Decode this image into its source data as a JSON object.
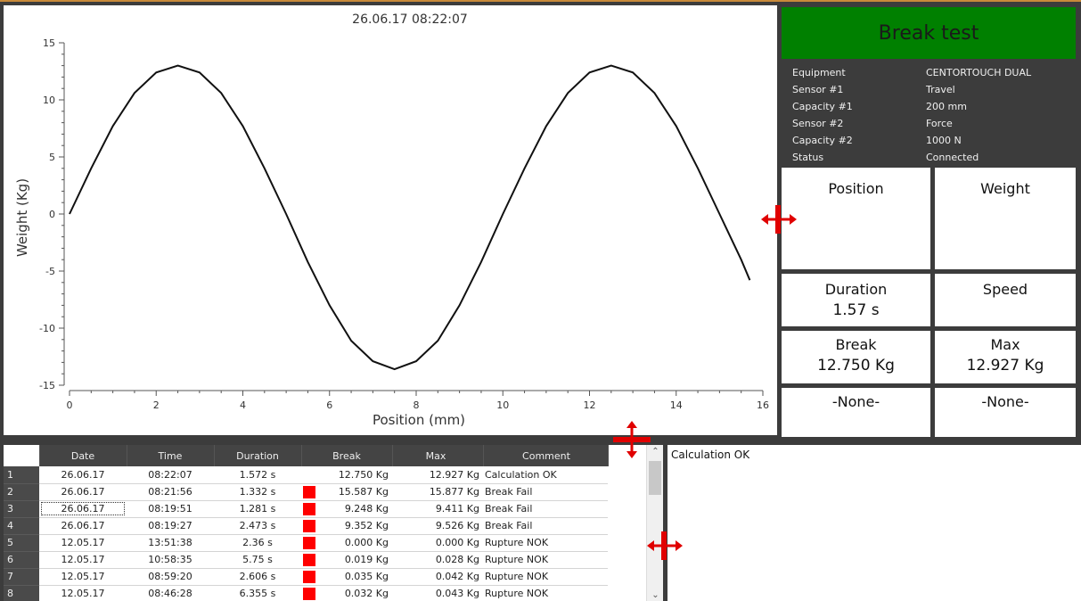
{
  "chart": {
    "timestamp": "26.06.17 08:22:07",
    "xlabel": "Position (mm)",
    "ylabel": "Weight (Kg)"
  },
  "chart_data": {
    "type": "line",
    "title": "26.06.17 08:22:07",
    "xlabel": "Position (mm)",
    "ylabel": "Weight (Kg)",
    "xlim": [
      0,
      16
    ],
    "ylim": [
      -15,
      15
    ],
    "xticks": [
      0,
      2,
      4,
      6,
      8,
      10,
      12,
      14,
      16
    ],
    "yticks": [
      -15,
      -10,
      -5,
      0,
      5,
      10,
      15
    ],
    "series": [
      {
        "x": [
          0,
          0.5,
          1,
          1.5,
          2,
          2.5,
          3,
          3.5,
          4,
          4.5,
          5,
          5.5,
          6,
          6.5,
          7,
          7.5,
          8,
          8.5,
          9,
          9.5,
          10,
          10.5,
          11,
          11.5,
          12,
          12.5,
          13,
          13.5,
          14,
          14.5,
          15,
          15.5,
          15.7
        ],
        "y": [
          0,
          4.0,
          7.7,
          10.6,
          12.4,
          13.0,
          12.4,
          10.6,
          7.7,
          4.0,
          0,
          -4.2,
          -8.0,
          -11.1,
          -12.9,
          -13.6,
          -12.9,
          -11.1,
          -8.0,
          -4.2,
          0,
          4.0,
          7.7,
          10.6,
          12.4,
          13.0,
          12.4,
          10.6,
          7.7,
          4.0,
          0,
          -4.0,
          -5.8
        ]
      }
    ]
  },
  "title": "Break test",
  "info": [
    {
      "label": "Equipment",
      "value": "CENTORTOUCH DUAL"
    },
    {
      "label": "Sensor #1",
      "value": "Travel"
    },
    {
      "label": "Capacity #1",
      "value": "200 mm"
    },
    {
      "label": "Sensor #2",
      "value": "Force"
    },
    {
      "label": "Capacity #2",
      "value": "1000 N"
    },
    {
      "label": "Status",
      "value": "Connected"
    }
  ],
  "stats": {
    "position": {
      "label": "Position",
      "value": ""
    },
    "weight": {
      "label": "Weight",
      "value": ""
    },
    "duration": {
      "label": "Duration",
      "value": "1.57 s"
    },
    "speed": {
      "label": "Speed",
      "value": ""
    },
    "break": {
      "label": "Break",
      "value": "12.750 Kg"
    },
    "max": {
      "label": "Max",
      "value": "12.927 Kg"
    },
    "none1": {
      "label": "-None-",
      "value": ""
    },
    "none2": {
      "label": "-None-",
      "value": ""
    }
  },
  "table": {
    "headers": [
      "Date",
      "Time",
      "Duration",
      "Break",
      "Max",
      "Comment"
    ],
    "rows": [
      {
        "n": "1",
        "date": "26.06.17",
        "time": "08:22:07",
        "duration": "1.572 s",
        "flag": false,
        "break": "12.750 Kg",
        "max": "12.927 Kg",
        "comment": "Calculation OK"
      },
      {
        "n": "2",
        "date": "26.06.17",
        "time": "08:21:56",
        "duration": "1.332 s",
        "flag": true,
        "break": "15.587 Kg",
        "max": "15.877 Kg",
        "comment": "Break Fail"
      },
      {
        "n": "3",
        "date": "26.06.17",
        "time": "08:19:51",
        "duration": "1.281 s",
        "flag": true,
        "break": "9.248 Kg",
        "max": "9.411 Kg",
        "comment": "Break Fail"
      },
      {
        "n": "4",
        "date": "26.06.17",
        "time": "08:19:27",
        "duration": "2.473 s",
        "flag": true,
        "break": "9.352 Kg",
        "max": "9.526 Kg",
        "comment": "Break Fail"
      },
      {
        "n": "5",
        "date": "12.05.17",
        "time": "13:51:38",
        "duration": "2.36 s",
        "flag": true,
        "break": "0.000 Kg",
        "max": "0.000 Kg",
        "comment": "Rupture NOK"
      },
      {
        "n": "6",
        "date": "12.05.17",
        "time": "10:58:35",
        "duration": "5.75 s",
        "flag": true,
        "break": "0.019 Kg",
        "max": "0.028 Kg",
        "comment": "Rupture NOK"
      },
      {
        "n": "7",
        "date": "12.05.17",
        "time": "08:59:20",
        "duration": "2.606 s",
        "flag": true,
        "break": "0.035 Kg",
        "max": "0.042 Kg",
        "comment": "Rupture NOK"
      },
      {
        "n": "8",
        "date": "12.05.17",
        "time": "08:46:28",
        "duration": "6.355 s",
        "flag": true,
        "break": "0.032 Kg",
        "max": "0.043 Kg",
        "comment": "Rupture NOK"
      }
    ]
  },
  "log": {
    "text": "Calculation OK"
  },
  "colors": {
    "title_bg": "#008000",
    "flag": "#ff0000",
    "splitter": "#e00000"
  },
  "icons": {
    "splitter_h": "resize-horizontal-icon",
    "splitter_v": "resize-vertical-icon",
    "scroll_up": "chevron-up-icon",
    "scroll_down": "chevron-down-icon"
  }
}
